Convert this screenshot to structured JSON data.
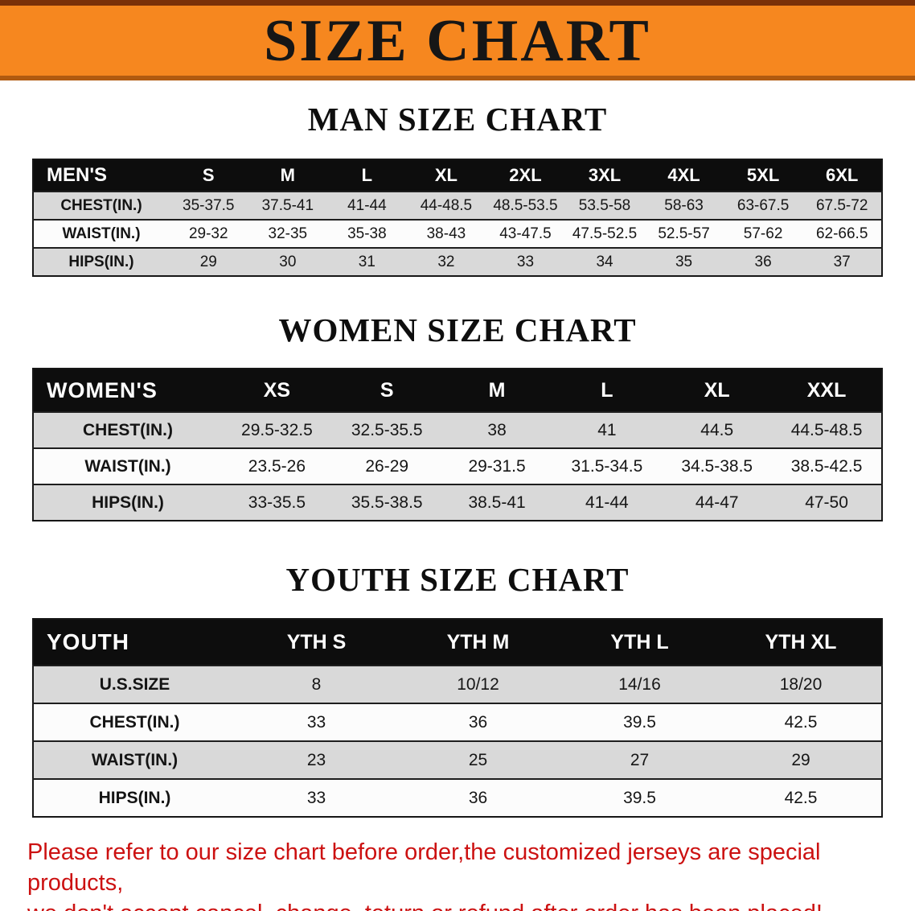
{
  "banner": {
    "title": "SIZE CHART"
  },
  "colors": {
    "banner_bg": "#f6871f",
    "header_bg": "#0d0d0d",
    "row_gray": "#d9d9d9",
    "disclaimer_red": "#cc1111"
  },
  "men": {
    "heading": "MAN SIZE CHART",
    "table": {
      "header": [
        "MEN'S",
        "S",
        "M",
        "L",
        "XL",
        "2XL",
        "3XL",
        "4XL",
        "5XL",
        "6XL"
      ],
      "rows": [
        {
          "label": "CHEST(IN.)",
          "values": [
            "35-37.5",
            "37.5-41",
            "41-44",
            "44-48.5",
            "48.5-53.5",
            "53.5-58",
            "58-63",
            "63-67.5",
            "67.5-72"
          ]
        },
        {
          "label": "WAIST(IN.)",
          "values": [
            "29-32",
            "32-35",
            "35-38",
            "38-43",
            "43-47.5",
            "47.5-52.5",
            "52.5-57",
            "57-62",
            "62-66.5"
          ]
        },
        {
          "label": "HIPS(IN.)",
          "values": [
            "29",
            "30",
            "31",
            "32",
            "33",
            "34",
            "35",
            "36",
            "37"
          ]
        }
      ]
    }
  },
  "women": {
    "heading": "WOMEN SIZE CHART",
    "table": {
      "header": [
        "WOMEN'S",
        "XS",
        "S",
        "M",
        "L",
        "XL",
        "XXL"
      ],
      "rows": [
        {
          "label": "CHEST(IN.)",
          "values": [
            "29.5-32.5",
            "32.5-35.5",
            "38",
            "41",
            "44.5",
            "44.5-48.5"
          ]
        },
        {
          "label": "WAIST(IN.)",
          "values": [
            "23.5-26",
            "26-29",
            "29-31.5",
            "31.5-34.5",
            "34.5-38.5",
            "38.5-42.5"
          ]
        },
        {
          "label": "HIPS(IN.)",
          "values": [
            "33-35.5",
            "35.5-38.5",
            "38.5-41",
            "41-44",
            "44-47",
            "47-50"
          ]
        }
      ]
    }
  },
  "youth": {
    "heading": "YOUTH SIZE CHART",
    "table": {
      "header": [
        "YOUTH",
        "YTH S",
        "YTH M",
        "YTH L",
        "YTH XL"
      ],
      "rows": [
        {
          "label": "U.S.SIZE",
          "values": [
            "8",
            "10/12",
            "14/16",
            "18/20"
          ]
        },
        {
          "label": "CHEST(IN.)",
          "values": [
            "33",
            "36",
            "39.5",
            "42.5"
          ]
        },
        {
          "label": "WAIST(IN.)",
          "values": [
            "23",
            "25",
            "27",
            "29"
          ]
        },
        {
          "label": "HIPS(IN.)",
          "values": [
            "33",
            "36",
            "39.5",
            "42.5"
          ]
        }
      ]
    }
  },
  "disclaimer": {
    "line1": "Please refer to our size chart before order,the customized jerseys are special products,",
    "line2": "we don't accept cancel, change, teturn or refund after order has been placed!"
  }
}
